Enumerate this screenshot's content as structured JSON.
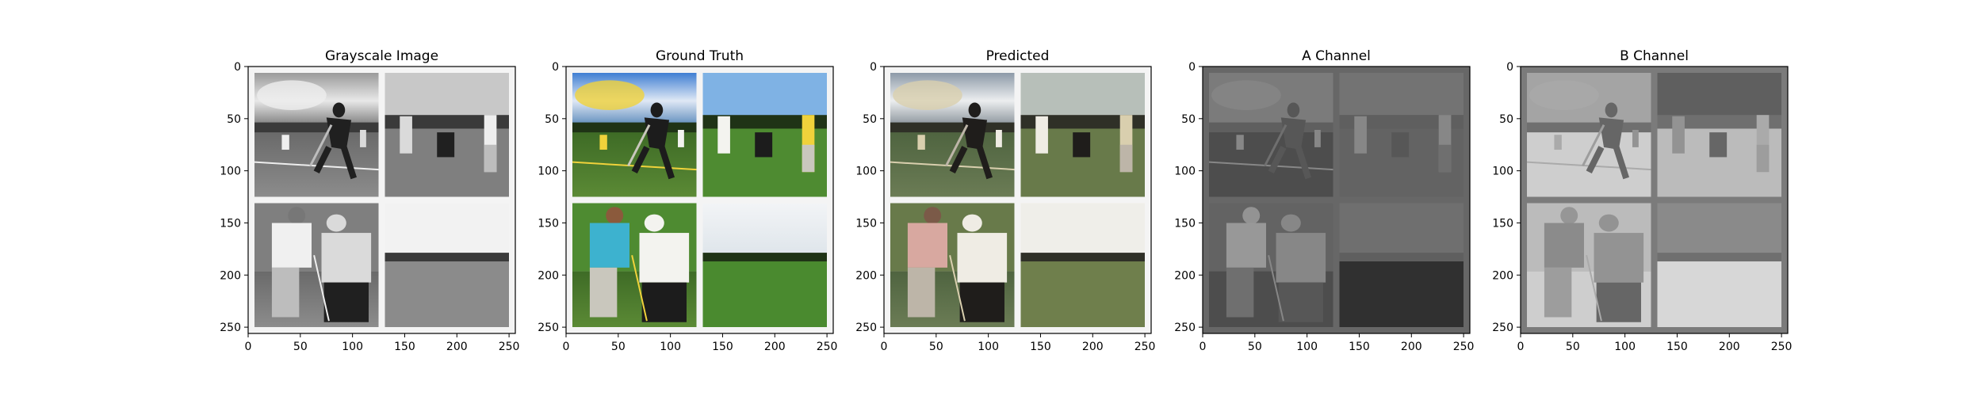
{
  "chart_data": [
    {
      "type": "image",
      "title": "Grayscale Image",
      "content": "grayscale",
      "xticks": [
        0,
        50,
        100,
        150,
        200,
        250
      ],
      "yticks": [
        0,
        50,
        100,
        150,
        200,
        250
      ],
      "xlim": [
        0,
        256
      ],
      "ylim": [
        256,
        0
      ]
    },
    {
      "type": "image",
      "title": "Ground Truth",
      "content": "color",
      "xticks": [
        0,
        50,
        100,
        150,
        200,
        250
      ],
      "yticks": [
        0,
        50,
        100,
        150,
        200,
        250
      ],
      "xlim": [
        0,
        256
      ],
      "ylim": [
        256,
        0
      ]
    },
    {
      "type": "image",
      "title": "Predicted",
      "content": "predicted",
      "xticks": [
        0,
        50,
        100,
        150,
        200,
        250
      ],
      "yticks": [
        0,
        50,
        100,
        150,
        200,
        250
      ],
      "xlim": [
        0,
        256
      ],
      "ylim": [
        256,
        0
      ]
    },
    {
      "type": "image",
      "title": "A Channel",
      "content": "a-channel",
      "xticks": [
        0,
        50,
        100,
        150,
        200,
        250
      ],
      "yticks": [
        0,
        50,
        100,
        150,
        200,
        250
      ],
      "xlim": [
        0,
        256
      ],
      "ylim": [
        256,
        0
      ]
    },
    {
      "type": "image",
      "title": "B Channel",
      "content": "b-channel",
      "xticks": [
        0,
        50,
        100,
        150,
        200,
        250
      ],
      "yticks": [
        0,
        50,
        100,
        150,
        200,
        250
      ],
      "xlim": [
        0,
        256
      ],
      "ylim": [
        256,
        0
      ]
    }
  ]
}
